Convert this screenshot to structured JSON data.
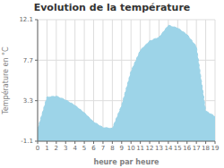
{
  "chart_data": {
    "type": "area",
    "title": "Evolution de la température",
    "xlabel": "heure par heure",
    "ylabel": "Température en °C",
    "x": [
      0,
      1,
      2,
      3,
      4,
      5,
      6,
      7,
      8,
      9,
      10,
      11,
      12,
      13,
      14,
      15,
      16,
      17,
      18,
      19
    ],
    "values": [
      0.2,
      3.7,
      3.8,
      3.4,
      2.8,
      2.0,
      1.0,
      0.4,
      0.3,
      2.8,
      6.5,
      8.8,
      9.8,
      10.2,
      11.5,
      11.2,
      10.5,
      9.2,
      2.2,
      1.6
    ],
    "xlim": [
      0,
      19
    ],
    "xticks": [
      0,
      1,
      2,
      3,
      4,
      5,
      6,
      7,
      8,
      9,
      10,
      11,
      12,
      13,
      14,
      15,
      16,
      17,
      18,
      19
    ],
    "ylim": [
      -1.1,
      12.1
    ],
    "yticks": [
      -1.1,
      3.3,
      7.7,
      12.1
    ],
    "grid": true,
    "color": "#9dd4e8",
    "line_style": "dashed"
  }
}
